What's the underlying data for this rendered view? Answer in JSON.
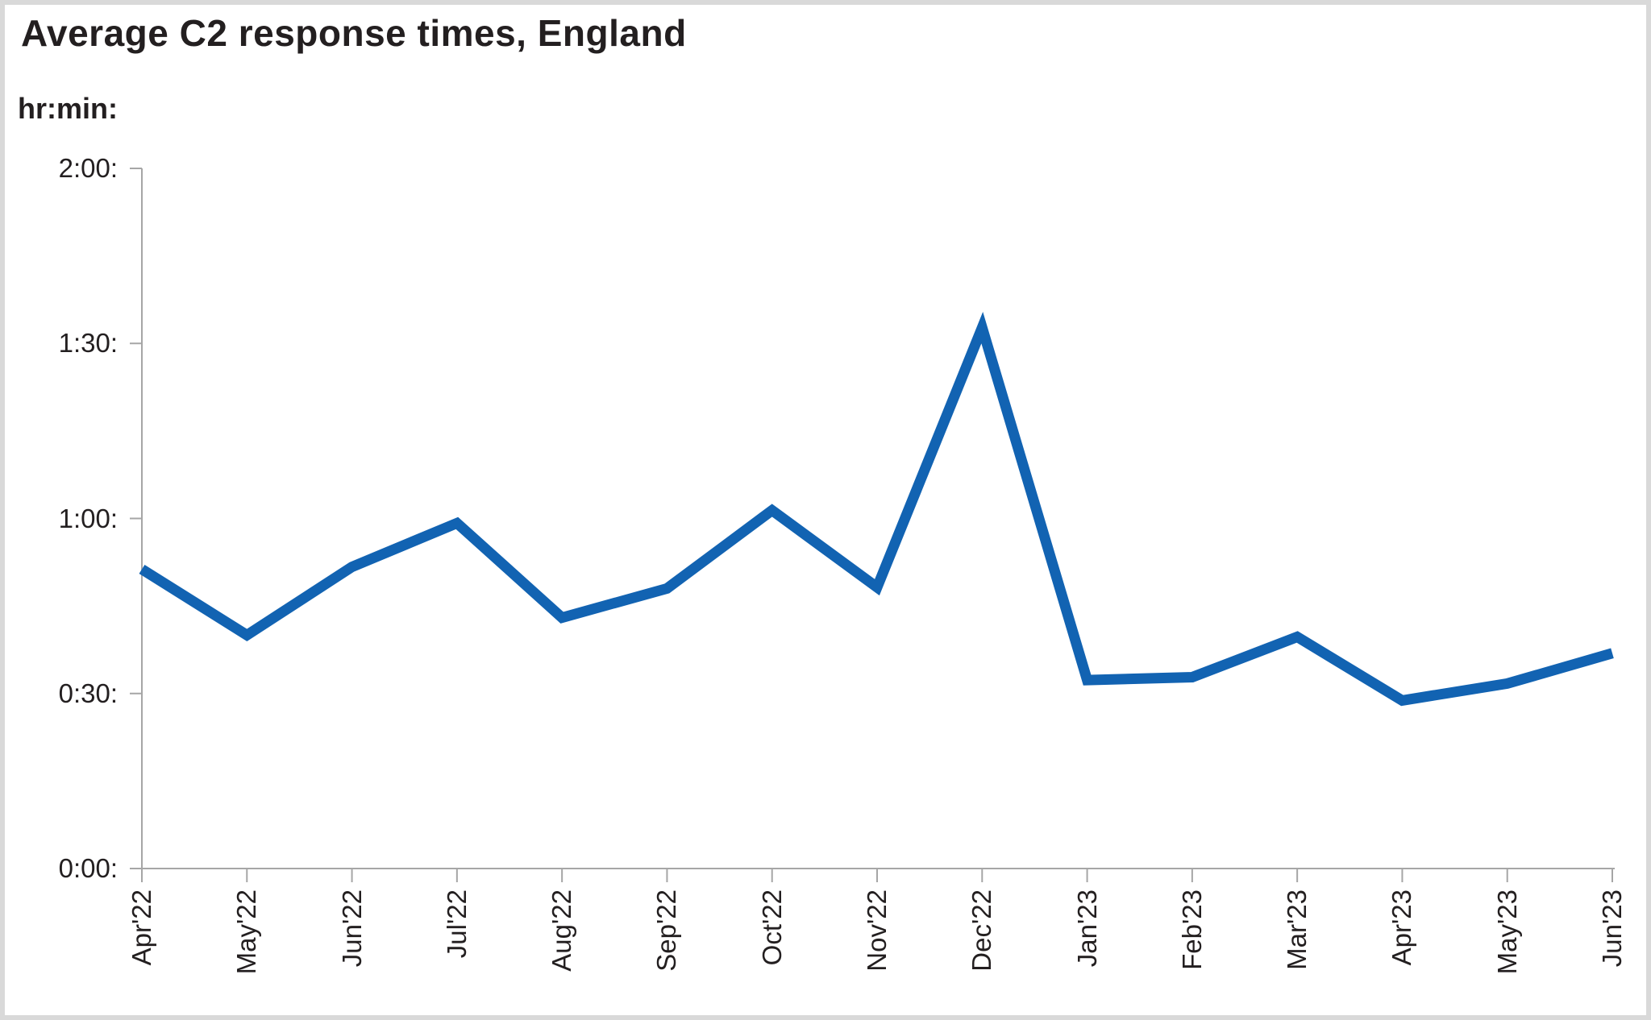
{
  "page": {
    "title": "Average C2 response times, England",
    "y_axis_unit_label": "hr:min:"
  },
  "colors": {
    "series_line": "#1263b2",
    "axis": "#a6a6a6",
    "text": "#231f20",
    "frame_border": "#d9d9d9",
    "background": "#ffffff"
  },
  "chart_data": {
    "type": "line",
    "title": "Average C2 response times, England",
    "unit": "hr:min (values stored as minutes)",
    "categories": [
      "Apr'22",
      "May'22",
      "Jun'22",
      "Jul'22",
      "Aug'22",
      "Sep'22",
      "Oct'22",
      "Nov'22",
      "Dec'22",
      "Jan'23",
      "Feb'23",
      "Mar'23",
      "Apr'23",
      "May'23",
      "Jun'23"
    ],
    "values_minutes": [
      51.3,
      40.0,
      51.7,
      59.2,
      43.0,
      48.0,
      61.4,
      48.2,
      92.7,
      32.3,
      32.8,
      39.7,
      28.8,
      31.7,
      36.9
    ],
    "values_hrmin": [
      "0:51",
      "0:40",
      "0:52",
      "0:59",
      "0:43",
      "0:48",
      "1:01",
      "0:48",
      "1:33",
      "0:32",
      "0:33",
      "0:40",
      "0:29",
      "0:32",
      "0:37"
    ],
    "y_ticks": [
      {
        "label": "2:00:",
        "minutes": 120
      },
      {
        "label": "1:30:",
        "minutes": 90
      },
      {
        "label": "1:00:",
        "minutes": 60
      },
      {
        "label": "0:30:",
        "minutes": 30
      },
      {
        "label": "0:00:",
        "minutes": 0
      }
    ],
    "ylim": [
      0,
      120
    ],
    "xlabel": "",
    "ylabel": "hr:min:",
    "grid": false,
    "legend": false
  }
}
